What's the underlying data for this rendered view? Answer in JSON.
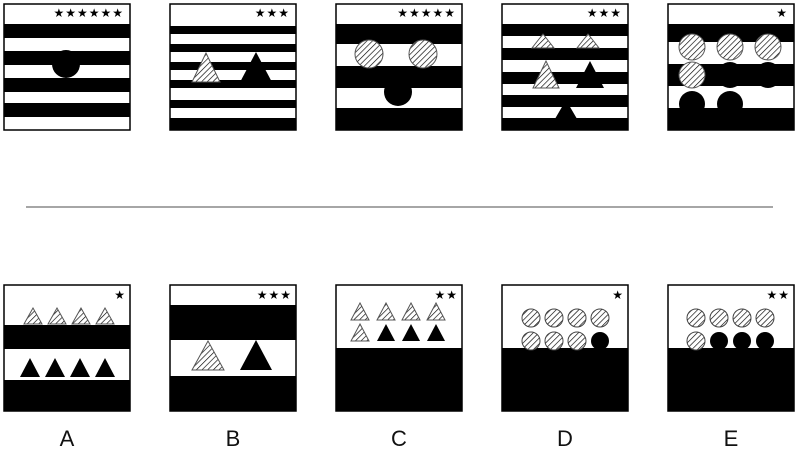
{
  "top_row": [
    {
      "stars": "★★★★★★"
    },
    {
      "stars": "★★★"
    },
    {
      "stars": "★★★★★"
    },
    {
      "stars": "★★★"
    },
    {
      "stars": "★"
    }
  ],
  "answer_row": [
    {
      "label": "A",
      "stars": "★"
    },
    {
      "label": "B",
      "stars": "★★★"
    },
    {
      "label": "C",
      "stars": "★★"
    },
    {
      "label": "D",
      "stars": "★"
    },
    {
      "label": "E",
      "stars": "★★"
    }
  ],
  "colors": {
    "ink": "#000000",
    "paper": "#ffffff",
    "divider": "#888888"
  }
}
